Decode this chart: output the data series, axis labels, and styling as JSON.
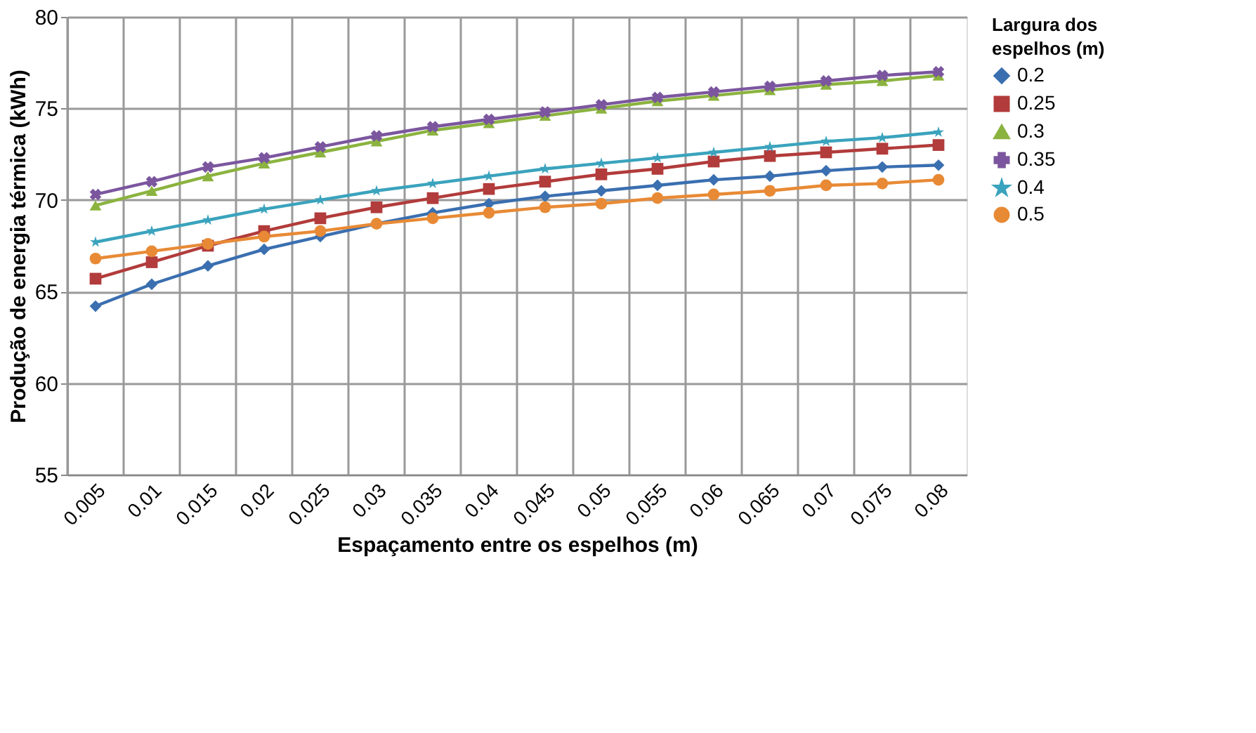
{
  "chart_data": {
    "type": "line",
    "xlabel": "Espaçamento entre os espelhos (m)",
    "ylabel": "Produção de energia térmica (kWh)",
    "legend_title": "Largura dos espelhos (m)",
    "legend": "right",
    "grid": true,
    "categories": [
      "0.005",
      "0.01",
      "0.015",
      "0.02",
      "0.025",
      "0.03",
      "0.035",
      "0.04",
      "0.045",
      "0.05",
      "0.055",
      "0.06",
      "0.065",
      "0.07",
      "0.075",
      "0.08"
    ],
    "ylim": [
      55,
      80
    ],
    "yticks": [
      55,
      60,
      65,
      70,
      75,
      80
    ],
    "series": [
      {
        "name": "0.2",
        "color": "#3a6fb0",
        "marker": "diamond",
        "values": [
          64.2,
          65.4,
          66.4,
          67.3,
          68.0,
          68.7,
          69.3,
          69.8,
          70.2,
          70.5,
          70.8,
          71.1,
          71.3,
          71.6,
          71.8,
          71.9
        ]
      },
      {
        "name": "0.25",
        "color": "#b23b3b",
        "marker": "square",
        "values": [
          65.7,
          66.6,
          67.5,
          68.3,
          69.0,
          69.6,
          70.1,
          70.6,
          71.0,
          71.4,
          71.7,
          72.1,
          72.4,
          72.6,
          72.8,
          73.0
        ]
      },
      {
        "name": "0.3",
        "color": "#8bb33f",
        "marker": "triangle",
        "values": [
          69.7,
          70.5,
          71.3,
          72.0,
          72.6,
          73.2,
          73.8,
          74.2,
          74.6,
          75.0,
          75.4,
          75.7,
          76.0,
          76.3,
          76.5,
          76.8
        ]
      },
      {
        "name": "0.35",
        "color": "#7b569e",
        "marker": "cross",
        "values": [
          70.3,
          71.0,
          71.8,
          72.3,
          72.9,
          73.5,
          74.0,
          74.4,
          74.8,
          75.2,
          75.6,
          75.9,
          76.2,
          76.5,
          76.8,
          77.0
        ]
      },
      {
        "name": "0.4",
        "color": "#3aa3bd",
        "marker": "star",
        "values": [
          67.7,
          68.3,
          68.9,
          69.5,
          70.0,
          70.5,
          70.9,
          71.3,
          71.7,
          72.0,
          72.3,
          72.6,
          72.9,
          73.2,
          73.4,
          73.7
        ]
      },
      {
        "name": "0.5",
        "color": "#e88a35",
        "marker": "circle",
        "values": [
          66.8,
          67.2,
          67.6,
          68.0,
          68.3,
          68.7,
          69.0,
          69.3,
          69.6,
          69.8,
          70.1,
          70.3,
          70.5,
          70.8,
          70.9,
          71.1
        ]
      }
    ]
  }
}
